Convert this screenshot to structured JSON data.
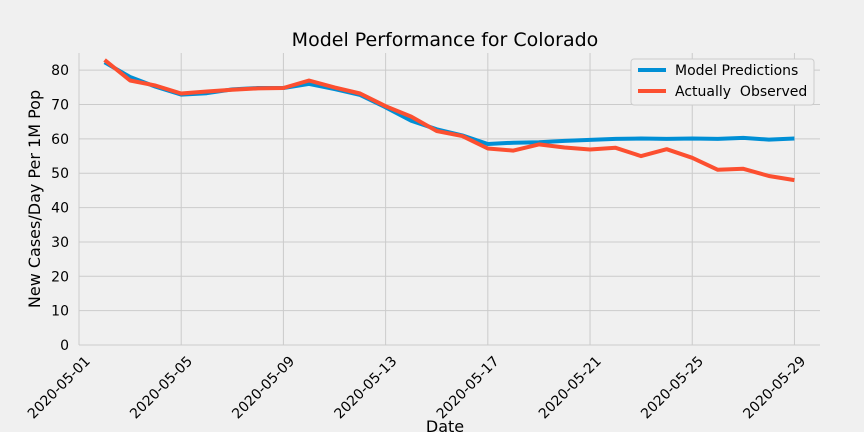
{
  "chart_data": {
    "type": "line",
    "title": "Model Performance for Colorado",
    "xlabel": "Date",
    "ylabel": "New Cases/Day Per 1M Pop",
    "xlim": [
      "2020-05-01",
      "2020-05-30"
    ],
    "ylim": [
      0,
      85
    ],
    "yticks": [
      0,
      10,
      20,
      30,
      40,
      50,
      60,
      70,
      80
    ],
    "xticks": [
      "2020-05-01",
      "2020-05-05",
      "2020-05-09",
      "2020-05-13",
      "2020-05-17",
      "2020-05-21",
      "2020-05-25",
      "2020-05-29"
    ],
    "grid": true,
    "legend_position": "top-right",
    "x": [
      "2020-05-02",
      "2020-05-03",
      "2020-05-04",
      "2020-05-05",
      "2020-05-06",
      "2020-05-07",
      "2020-05-08",
      "2020-05-09",
      "2020-05-10",
      "2020-05-11",
      "2020-05-12",
      "2020-05-13",
      "2020-05-14",
      "2020-05-15",
      "2020-05-16",
      "2020-05-17",
      "2020-05-18",
      "2020-05-19",
      "2020-05-20",
      "2020-05-21",
      "2020-05-22",
      "2020-05-23",
      "2020-05-24",
      "2020-05-25",
      "2020-05-26",
      "2020-05-27",
      "2020-05-28",
      "2020-05-29"
    ],
    "series": [
      {
        "name": "Model Predictions",
        "color": "#008fd5",
        "values": [
          82.3,
          78.0,
          75.2,
          72.9,
          73.3,
          74.4,
          74.8,
          74.8,
          76.0,
          74.5,
          72.8,
          69.2,
          65.3,
          62.8,
          61.0,
          58.5,
          58.9,
          59.0,
          59.4,
          59.7,
          60.0,
          60.1,
          60.0,
          60.1,
          60.0,
          60.3,
          59.8,
          60.1
        ]
      },
      {
        "name": "Actually  Observed",
        "color": "#fc4f30",
        "values": [
          83.0,
          77.0,
          75.5,
          73.2,
          73.8,
          74.3,
          74.7,
          74.8,
          77.0,
          75.0,
          73.2,
          69.5,
          66.5,
          62.3,
          60.8,
          57.2,
          56.6,
          58.4,
          57.5,
          56.9,
          57.4,
          55.0,
          57.0,
          54.5,
          51.0,
          51.3,
          49.2,
          48.0
        ]
      }
    ]
  }
}
